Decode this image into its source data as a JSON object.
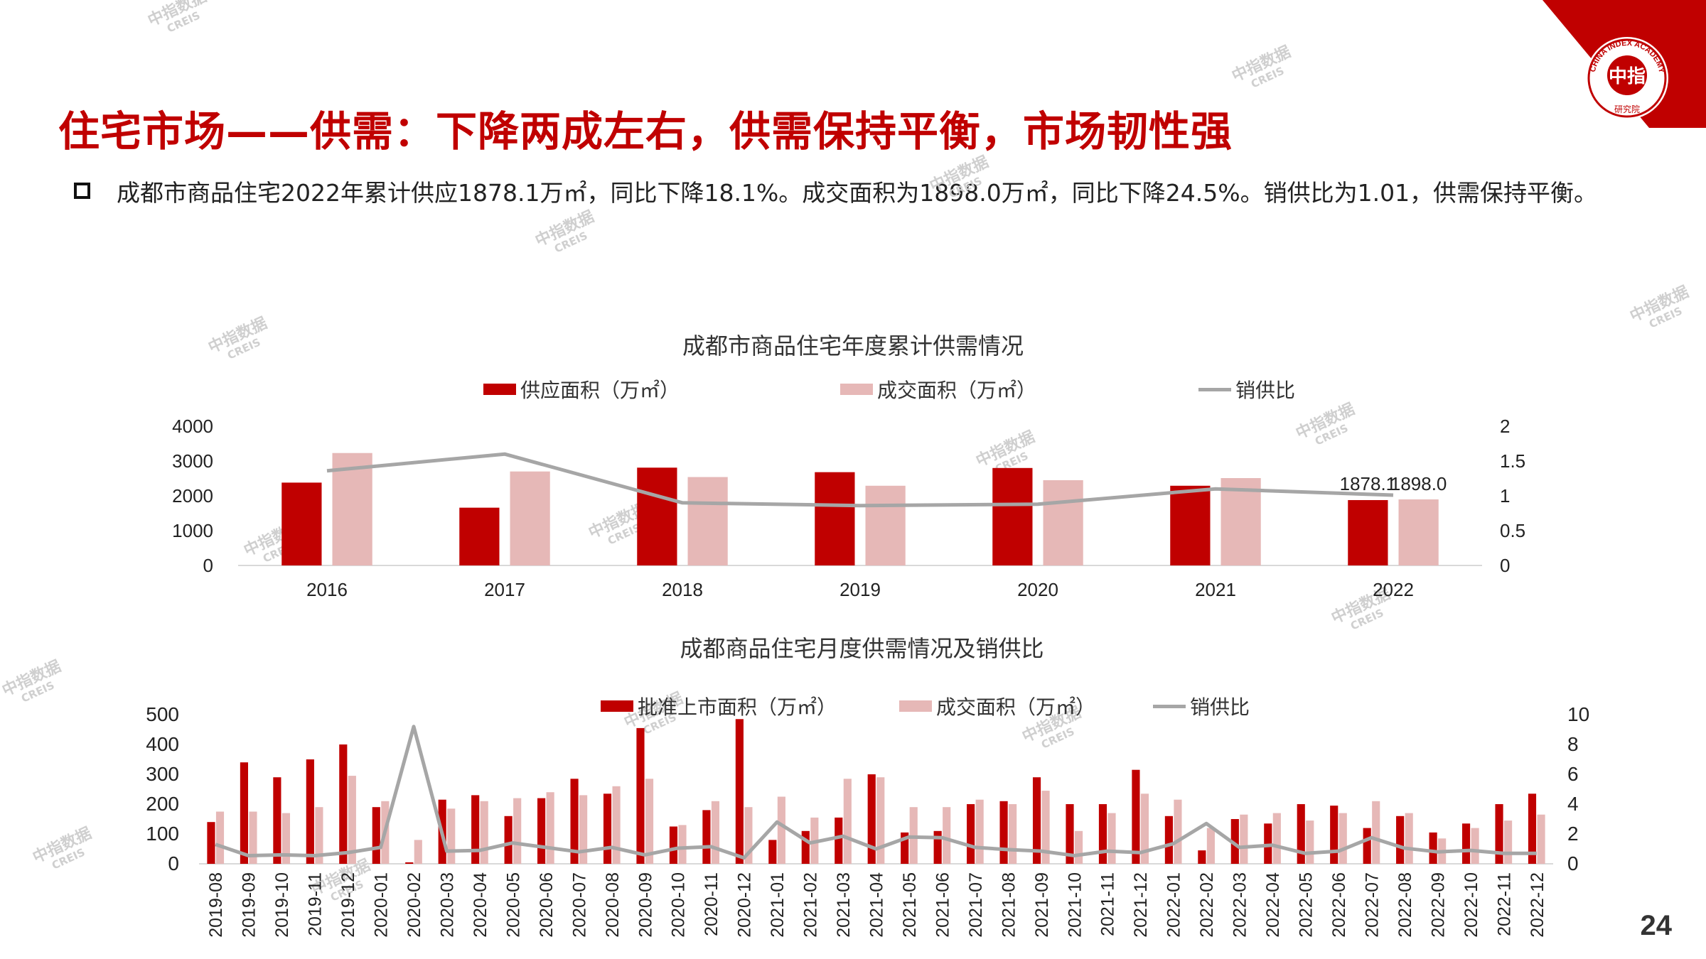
{
  "header": {
    "title": "住宅市场——供需：下降两成左右，供需保持平衡，市场韧性强",
    "summary": "成都市商品住宅2022年累计供应1878.1万㎡，同比下降18.1%。成交面积为1898.0万㎡，同比下降24.5%。销供比为1.01，供需保持平衡。",
    "page_number": "24"
  },
  "brand": {
    "logo_text": "中指",
    "logo_ring_text": "CHINA INDEX ACADEMY",
    "logo_sub": "研究院",
    "watermark_cn": "中指数据",
    "watermark_en": "CREIS",
    "accent_color": "#c00000",
    "light_color": "#e6b8b7",
    "line_color": "#a6a6a6"
  },
  "chart_data": [
    {
      "type": "bar",
      "title": "成都市商品住宅年度累计供需情况",
      "categories": [
        "2016",
        "2017",
        "2018",
        "2019",
        "2020",
        "2021",
        "2022"
      ],
      "series": [
        {
          "name": "供应面积（万㎡）",
          "type": "bar",
          "axis": "left",
          "color": "#c00000",
          "values": [
            2380,
            1660,
            2810,
            2680,
            2800,
            2290,
            1878.1
          ]
        },
        {
          "name": "成交面积（万㎡）",
          "type": "bar",
          "axis": "left",
          "color": "#e6b8b7",
          "values": [
            3230,
            2700,
            2540,
            2290,
            2450,
            2510,
            1898.0
          ]
        },
        {
          "name": "销供比",
          "type": "line",
          "axis": "right",
          "color": "#a6a6a6",
          "values": [
            1.36,
            1.6,
            0.9,
            0.86,
            0.88,
            1.1,
            1.01
          ]
        }
      ],
      "data_labels": [
        "1878.1",
        "1898.0"
      ],
      "ylim": [
        0,
        4000
      ],
      "yticks": [
        "0",
        "1000",
        "2000",
        "3000",
        "4000"
      ],
      "y2lim": [
        0,
        2
      ],
      "y2ticks": [
        "0",
        "0.5",
        "1",
        "1.5",
        "2"
      ],
      "legend": "top"
    },
    {
      "type": "bar",
      "title": "成都商品住宅月度供需情况及销供比",
      "categories": [
        "2019-08",
        "2019-09",
        "2019-10",
        "2019-11",
        "2019-12",
        "2020-01",
        "2020-02",
        "2020-03",
        "2020-04",
        "2020-05",
        "2020-06",
        "2020-07",
        "2020-08",
        "2020-09",
        "2020-10",
        "2020-11",
        "2020-12",
        "2021-01",
        "2021-02",
        "2021-03",
        "2021-04",
        "2021-05",
        "2021-06",
        "2021-07",
        "2021-08",
        "2021-09",
        "2021-10",
        "2021-11",
        "2021-12",
        "2022-01",
        "2022-02",
        "2022-03",
        "2022-04",
        "2022-05",
        "2022-06",
        "2022-07",
        "2022-08",
        "2022-09",
        "2022-10",
        "2022-11",
        "2022-12"
      ],
      "series": [
        {
          "name": "批准上市面积（万㎡）",
          "type": "bar",
          "axis": "left",
          "color": "#c00000",
          "values": [
            140,
            340,
            290,
            350,
            400,
            190,
            5,
            215,
            230,
            160,
            220,
            285,
            235,
            455,
            125,
            180,
            485,
            80,
            110,
            155,
            300,
            105,
            110,
            200,
            210,
            290,
            200,
            200,
            315,
            160,
            45,
            150,
            135,
            200,
            195,
            120,
            160,
            105,
            135,
            200,
            235
          ]
        },
        {
          "name": "成交面积（万㎡）",
          "type": "bar",
          "axis": "left",
          "color": "#e6b8b7",
          "values": [
            175,
            175,
            170,
            190,
            295,
            210,
            80,
            185,
            210,
            220,
            240,
            230,
            260,
            285,
            130,
            210,
            190,
            225,
            155,
            285,
            290,
            190,
            190,
            215,
            200,
            245,
            110,
            170,
            235,
            215,
            120,
            165,
            170,
            145,
            170,
            210,
            170,
            85,
            120,
            145,
            165
          ]
        },
        {
          "name": "销供比",
          "type": "line",
          "axis": "right",
          "color": "#a6a6a6",
          "values": [
            1.3,
            0.55,
            0.6,
            0.55,
            0.75,
            1.1,
            9.2,
            0.85,
            0.9,
            1.4,
            1.1,
            0.8,
            1.1,
            0.6,
            1.05,
            1.15,
            0.4,
            2.8,
            1.4,
            1.85,
            1.0,
            1.8,
            1.75,
            1.1,
            0.95,
            0.85,
            0.55,
            0.85,
            0.75,
            1.35,
            2.7,
            1.1,
            1.25,
            0.7,
            0.85,
            1.75,
            1.05,
            0.8,
            0.9,
            0.7,
            0.7
          ]
        }
      ],
      "ylim": [
        0,
        500
      ],
      "yticks": [
        "0",
        "100",
        "200",
        "300",
        "400",
        "500"
      ],
      "y2lim": [
        0,
        10
      ],
      "y2ticks": [
        "0",
        "2",
        "4",
        "6",
        "8",
        "10"
      ],
      "legend": "top"
    }
  ]
}
